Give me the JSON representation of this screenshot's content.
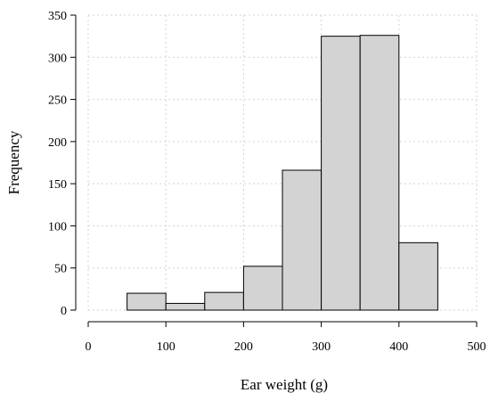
{
  "chart_data": {
    "type": "bar",
    "subtype": "histogram",
    "title": "",
    "xlabel": "Ear weight (g)",
    "ylabel": "Frequency",
    "bin_edges": [
      50,
      100,
      150,
      200,
      250,
      300,
      350,
      400,
      450
    ],
    "values": [
      20,
      8,
      21,
      52,
      166,
      325,
      326,
      80
    ],
    "xlim": [
      0,
      500
    ],
    "ylim": [
      0,
      350
    ],
    "x_ticks": [
      0,
      100,
      200,
      300,
      400,
      500
    ],
    "y_ticks": [
      0,
      50,
      100,
      150,
      200,
      250,
      300,
      350
    ],
    "grid": true,
    "legend": "none",
    "bar_color": "#d3d3d3",
    "grid_color": "#d3d3d3"
  }
}
